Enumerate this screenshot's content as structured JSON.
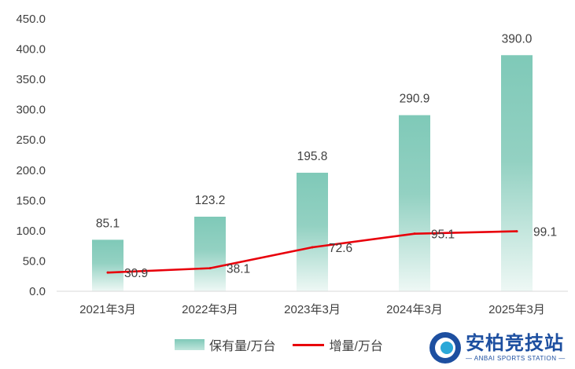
{
  "chart_data": {
    "type": "bar",
    "categories": [
      "2021年3月",
      "2022年3月",
      "2023年3月",
      "2024年3月",
      "2025年3月"
    ],
    "series": [
      {
        "name": "保有量/万台",
        "kind": "bar",
        "values": [
          85.1,
          123.2,
          195.8,
          290.9,
          390.0
        ],
        "labels": [
          "85.1",
          "123.2",
          "195.8",
          "290.9",
          "390.0"
        ],
        "color": "#7fc9b8"
      },
      {
        "name": "增量/万台",
        "kind": "line",
        "values": [
          30.9,
          38.1,
          72.6,
          95.1,
          99.1
        ],
        "labels": [
          "30.9",
          "38.1",
          "72.6",
          "95.1",
          "99.1"
        ],
        "color": "#e8000b"
      }
    ],
    "yticks": [
      "0.0",
      "50.0",
      "100.0",
      "150.0",
      "200.0",
      "250.0",
      "300.0",
      "350.0",
      "400.0",
      "450.0"
    ],
    "ylim": [
      0,
      450
    ],
    "grid": false,
    "legend_position": "bottom"
  },
  "legend": {
    "bar_label": "保有量/万台",
    "line_label": "增量/万台"
  },
  "watermark": {
    "name_cn": "安柏竞技站",
    "name_en": "— ANBAI SPORTS STATION —"
  }
}
